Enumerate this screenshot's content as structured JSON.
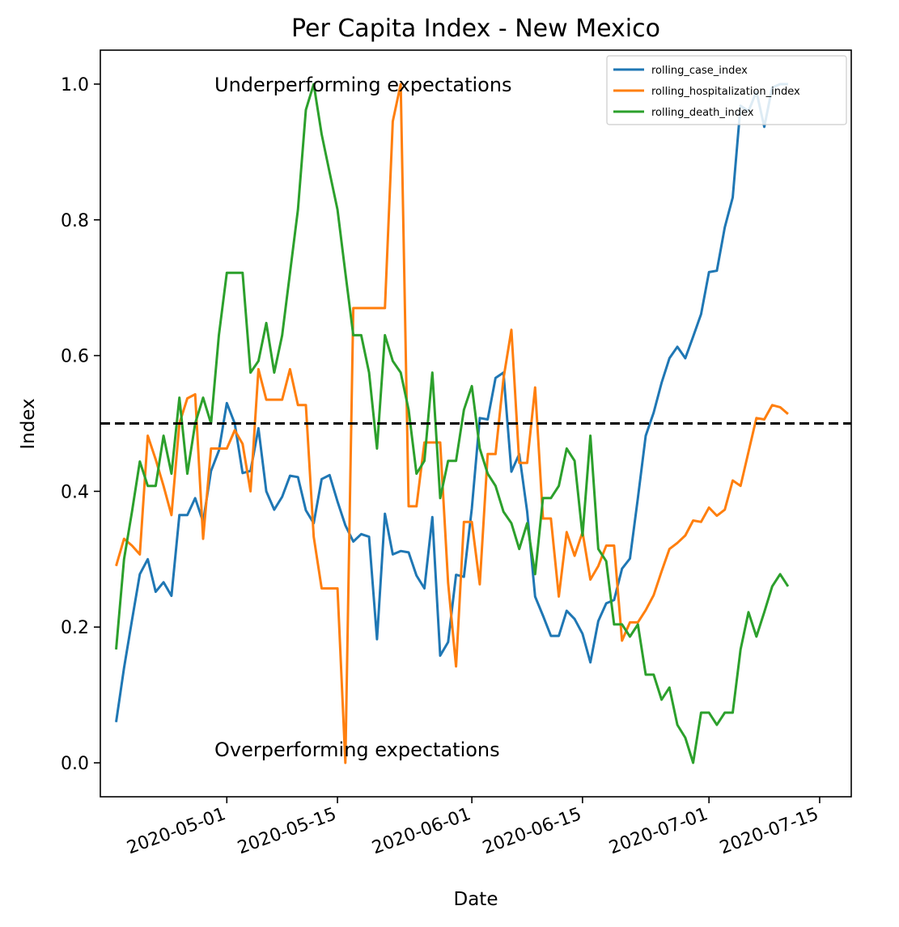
{
  "chart_data": {
    "type": "line",
    "title": "Per Capita Index - New Mexico",
    "xlabel": "Date",
    "ylabel": "Index",
    "x_start": "2020-04-17",
    "x_end": "2020-07-15",
    "xlim": [
      "2020-04-15",
      "2020-07-19"
    ],
    "ylim": [
      -0.05,
      1.05
    ],
    "xticks": [
      "2020-05-01",
      "2020-05-15",
      "2020-06-01",
      "2020-06-15",
      "2020-07-01",
      "2020-07-15"
    ],
    "yticks": [
      "0.0",
      "0.2",
      "0.4",
      "0.6",
      "0.8",
      "1.0"
    ],
    "hline": 0.5,
    "annotations": [
      "Underperforming expectations",
      "Overperforming expectations"
    ],
    "legend_position": "upper right",
    "series": [
      {
        "name": "rolling_case_index",
        "color": "#1f77b4",
        "values": [
          0.06,
          0.14,
          0.21,
          0.278,
          0.3,
          0.252,
          0.266,
          0.246,
          0.365,
          0.365,
          0.39,
          0.355,
          0.43,
          0.46,
          0.53,
          0.5,
          0.427,
          0.43,
          0.493,
          0.4,
          0.373,
          0.392,
          0.423,
          0.421,
          0.372,
          0.353,
          0.418,
          0.424,
          0.385,
          0.35,
          0.326,
          0.337,
          0.333,
          0.182,
          0.367,
          0.307,
          0.312,
          0.31,
          0.276,
          0.257,
          0.362,
          0.158,
          0.178,
          0.277,
          0.274,
          0.375,
          0.508,
          0.506,
          0.567,
          0.575,
          0.429,
          0.455,
          0.37,
          0.245,
          0.217,
          0.187,
          0.187,
          0.224,
          0.212,
          0.19,
          0.148,
          0.209,
          0.235,
          0.24,
          0.286,
          0.301,
          0.39,
          0.482,
          0.516,
          0.56,
          0.596,
          0.613,
          0.596,
          0.628,
          0.661,
          0.723,
          0.725,
          0.789,
          0.833,
          0.968,
          0.96,
          0.989,
          0.937,
          0.995,
          1.0,
          1.0
        ]
      },
      {
        "name": "rolling_hospitalization_index",
        "color": "#ff7f0e",
        "values": [
          0.29,
          0.33,
          0.32,
          0.307,
          0.482,
          0.447,
          0.408,
          0.365,
          0.5,
          0.537,
          0.543,
          0.33,
          0.463,
          0.463,
          0.463,
          0.49,
          0.47,
          0.4,
          0.58,
          0.535,
          0.535,
          0.535,
          0.58,
          0.527,
          0.527,
          0.333,
          0.257,
          0.257,
          0.257,
          0.0,
          0.67,
          0.67,
          0.67,
          0.67,
          0.67,
          0.945,
          1.0,
          0.378,
          0.378,
          0.472,
          0.472,
          0.472,
          0.265,
          0.142,
          0.355,
          0.355,
          0.263,
          0.455,
          0.455,
          0.566,
          0.638,
          0.442,
          0.442,
          0.553,
          0.36,
          0.36,
          0.245,
          0.34,
          0.305,
          0.34,
          0.27,
          0.29,
          0.32,
          0.32,
          0.18,
          0.207,
          0.207,
          0.225,
          0.247,
          0.282,
          0.315,
          0.324,
          0.335,
          0.357,
          0.355,
          0.376,
          0.364,
          0.373,
          0.416,
          0.408,
          0.458,
          0.508,
          0.506,
          0.527,
          0.524,
          0.514
        ]
      },
      {
        "name": "rolling_death_index",
        "color": "#2ca02c",
        "values": [
          0.167,
          0.3,
          0.37,
          0.444,
          0.408,
          0.408,
          0.482,
          0.426,
          0.538,
          0.426,
          0.5,
          0.538,
          0.5,
          0.63,
          0.722,
          0.722,
          0.722,
          0.575,
          0.592,
          0.648,
          0.575,
          0.63,
          0.722,
          0.815,
          0.962,
          1.0,
          0.926,
          0.87,
          0.815,
          0.722,
          0.63,
          0.63,
          0.575,
          0.463,
          0.63,
          0.592,
          0.575,
          0.52,
          0.426,
          0.445,
          0.575,
          0.39,
          0.445,
          0.445,
          0.52,
          0.555,
          0.463,
          0.426,
          0.408,
          0.37,
          0.353,
          0.315,
          0.353,
          0.278,
          0.39,
          0.39,
          0.408,
          0.463,
          0.445,
          0.335,
          0.482,
          0.315,
          0.297,
          0.204,
          0.204,
          0.186,
          0.204,
          0.13,
          0.13,
          0.093,
          0.111,
          0.056,
          0.037,
          0.0,
          0.074,
          0.074,
          0.056,
          0.074,
          0.074,
          0.167,
          0.222,
          0.186,
          0.222,
          0.26,
          0.278,
          0.26
        ]
      }
    ]
  }
}
